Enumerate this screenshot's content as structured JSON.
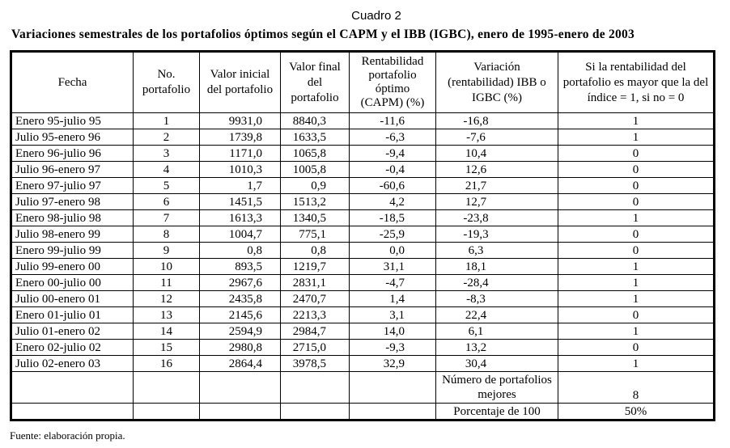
{
  "caption": "Cuadro 2",
  "title": "Variaciones semestrales de los portafolios óptimos según el CAPM y el IBB (IGBC), enero de 1995-enero de 2003",
  "headers": [
    "Fecha",
    "No. portafolio",
    "Valor inicial del portafolio",
    "Valor final del portafolio",
    "Rentabilidad portafolio óptimo (CAPM) (%)",
    "Variación (rentabilidad) IBB o IGBC (%)",
    "Si la rentabilidad del portafolio es mayor que la del índice = 1, si no = 0"
  ],
  "rows": [
    [
      "Enero 95-julio 95",
      "1",
      "9931,0",
      "8840,3",
      "-11,6",
      "-16,8",
      "1"
    ],
    [
      "Julio 95-enero 96",
      "2",
      "1739,8",
      "1633,5",
      "-6,3",
      "-7,6",
      "1"
    ],
    [
      "Enero 96-julio 96",
      "3",
      "1171,0",
      "1065,8",
      "-9,4",
      "10,4",
      "0"
    ],
    [
      "Julio 96-enero 97",
      "4",
      "1010,3",
      "1005,8",
      "-0,4",
      "12,6",
      "0"
    ],
    [
      "Enero 97-julio 97",
      "5",
      "1,7",
      "0,9",
      "-60,6",
      "21,7",
      "0"
    ],
    [
      "Julio 97-enero 98",
      "6",
      "1451,5",
      "1513,2",
      "4,2",
      "12,7",
      "0"
    ],
    [
      "Enero 98-julio 98",
      "7",
      "1613,3",
      "1340,5",
      "-18,5",
      "-23,8",
      "1"
    ],
    [
      "Julio 98-enero 99",
      "8",
      "1004,7",
      "775,1",
      "-25,9",
      "-19,3",
      "0"
    ],
    [
      "Enero 99-julio 99",
      "9",
      "0,8",
      "0,8",
      "0,0",
      "6,3",
      "0"
    ],
    [
      "Julio 99-enero 00",
      "10",
      "893,5",
      "1219,7",
      "31,1",
      "18,1",
      "1"
    ],
    [
      "Enero 00-julio 00",
      "11",
      "2967,6",
      "2831,1",
      "-4,7",
      "-28,4",
      "1"
    ],
    [
      "Julio 00-enero 01",
      "12",
      "2435,8",
      "2470,7",
      "1,4",
      "-8,3",
      "1"
    ],
    [
      "Enero 01-julio 01",
      "13",
      "2145,6",
      "2213,3",
      "3,1",
      "22,4",
      "0"
    ],
    [
      "Julio 01-enero 02",
      "14",
      "2594,9",
      "2984,7",
      "14,0",
      "6,1",
      "1"
    ],
    [
      "Enero 02-julio 02",
      "15",
      "2980,8",
      "2715,0",
      "-9,3",
      "13,2",
      "0"
    ],
    [
      "Julio 02-enero 03",
      "16",
      "2864,4",
      "3978,5",
      "32,9",
      "30,4",
      "1"
    ]
  ],
  "summary": {
    "better_label": "Número de portafolios mejores",
    "better_value": "8",
    "percent_label": "Porcentaje de 100",
    "percent_value": "50%"
  },
  "source": "Fuente: elaboración propia."
}
